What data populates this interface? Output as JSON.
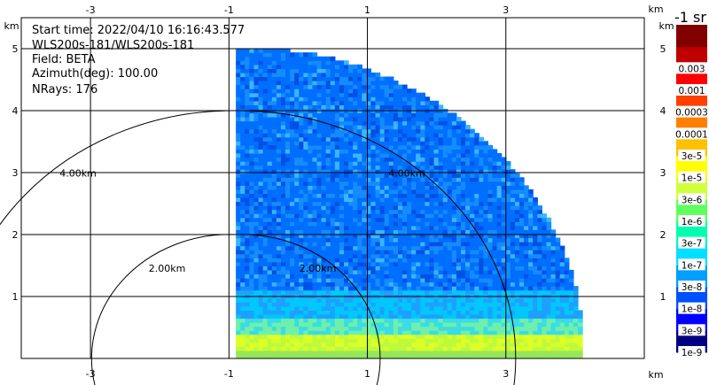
{
  "info": {
    "start_time": "Start time: 2022/04/10 16:16:43.577",
    "instrument": "WLS200s-181/WLS200s-181",
    "field": "Field: BETA",
    "azimuth": "Azimuth(deg): 100.00",
    "nrays": "NRays: 176"
  },
  "colors": {
    "grid": "#000000",
    "scale": [
      "#000080",
      "#0000ff",
      "#0050ff",
      "#00a0ff",
      "#00e0ff",
      "#00ffb0",
      "#60ff60",
      "#d0ff40",
      "#ffff00",
      "#ffc000",
      "#ff8000",
      "#ff4000",
      "#ff0000",
      "#c00000",
      "#800000"
    ]
  },
  "chart_data": {
    "type": "heatmap",
    "field": "BETA",
    "units": "-1 sr",
    "unit_label": "km",
    "xlim": [
      -4,
      5
    ],
    "ylim": [
      0,
      5.5
    ],
    "x_ticks": [
      "-3",
      "-1",
      "1",
      "3"
    ],
    "y_ticks": [
      "1",
      "2",
      "3",
      "4",
      "5"
    ],
    "range_rings": [
      {
        "radius_km": 2.0,
        "label": "2.00km"
      },
      {
        "radius_km": 4.0,
        "label": "4.00km"
      }
    ],
    "colorbar_labels": [
      "1e-9",
      "3e-9",
      "1e-8",
      "3e-8",
      "1e-7",
      "3e-7",
      "1e-6",
      "3e-6",
      "1e-5",
      "3e-5",
      "0.0001",
      "0.0003",
      "0.001",
      "0.003"
    ],
    "sector": {
      "x_start_km": -0.9,
      "max_range_km": 5.0,
      "azimuth_from_deg": 0,
      "azimuth_to_deg": 90
    },
    "field_description": [
      {
        "height_km": [
          0,
          0.5
        ],
        "value": "3e-6",
        "note": "yellow-green band near surface"
      },
      {
        "height_km": [
          0.5,
          1.2
        ],
        "value": "3e-7",
        "note": "cyan transition layer"
      },
      {
        "height_km": [
          1.2,
          5.0
        ],
        "value": "1e-8",
        "note": "blue background aloft"
      }
    ]
  }
}
